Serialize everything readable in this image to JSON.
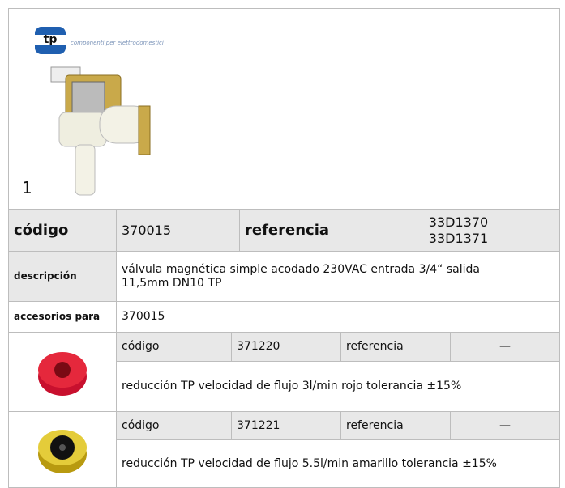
{
  "header": {
    "logo": "tp",
    "tagline": "componenti per elettrodomestici",
    "image_label": "1"
  },
  "product": {
    "code_label": "código",
    "code": "370015",
    "ref_label": "referencia",
    "refs": [
      "33D1370",
      "33D1371"
    ],
    "desc_label": "descripción",
    "description": "válvula magnética  simple acodado 230VAC entrada 3/4“ salida 11,5mm DN10 TP",
    "accessories_label": "accesorios para",
    "accessories_for": "370015"
  },
  "accessories": [
    {
      "code_label": "código",
      "code": "371220",
      "ref_label": "referencia",
      "ref": "—",
      "description": "reducción  TP velocidad de flujo 3l/min rojo tolerancia ±15%"
    },
    {
      "code_label": "código",
      "code": "371221",
      "ref_label": "referencia",
      "ref": "—",
      "description": "reducción  TP velocidad de flujo 5.5l/min amarillo tolerancia ±15%"
    }
  ]
}
